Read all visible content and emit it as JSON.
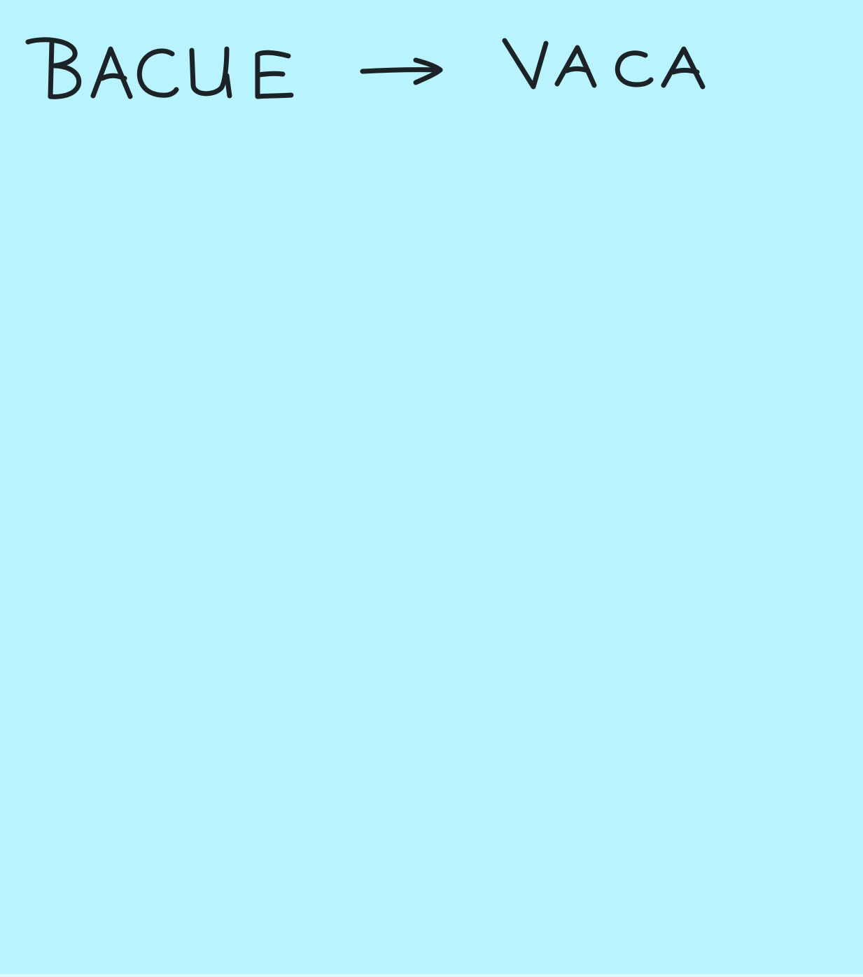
{
  "note": {
    "background_color": "#b9f3fe",
    "ink_color": "#1c2326",
    "source_word": "BACUE",
    "arrow": "→",
    "target_word": "VACA"
  }
}
